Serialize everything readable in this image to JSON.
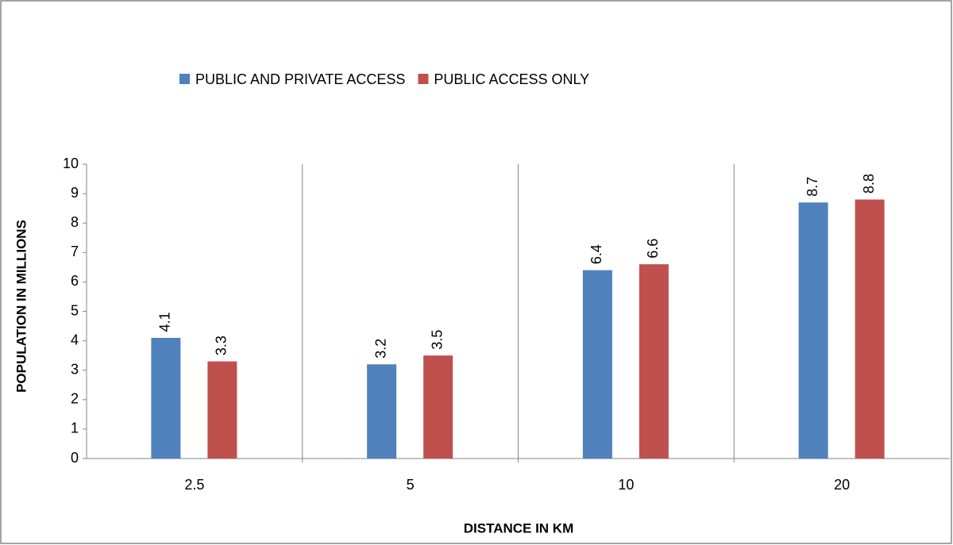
{
  "chart_data": {
    "type": "bar",
    "x_label": "DISTANCE IN KM",
    "y_label": "POPULATION IN MILLIONS",
    "categories": [
      "2.5",
      "5",
      "10",
      "20"
    ],
    "series": [
      {
        "name": "PUBLIC AND PRIVATE ACCESS",
        "color": "#4f81bd",
        "values": [
          4.1,
          3.2,
          6.4,
          8.7
        ]
      },
      {
        "name": "PUBLIC ACCESS ONLY",
        "color": "#c0504d",
        "values": [
          3.3,
          3.5,
          6.6,
          8.8
        ]
      }
    ],
    "ylim": [
      0,
      10
    ],
    "yticks": [
      0,
      1,
      2,
      3,
      4,
      5,
      6,
      7,
      8,
      9,
      10
    ],
    "legend": "top"
  }
}
